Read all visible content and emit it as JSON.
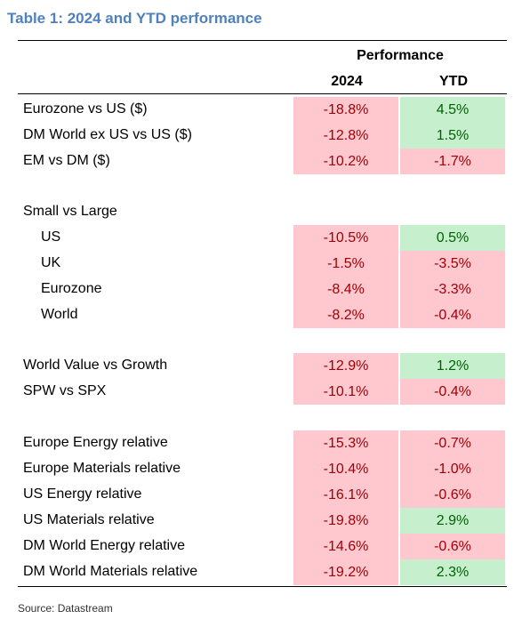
{
  "title": "Table 1: 2024 and YTD performance",
  "header": {
    "group": "Performance",
    "col1": "2024",
    "col2": "YTD"
  },
  "rows": [
    {
      "label": "Eurozone vs US ($)",
      "v2024": "-18.8%",
      "ytd": "4.5%"
    },
    {
      "label": "DM World ex US vs US ($)",
      "v2024": "-12.8%",
      "ytd": "1.5%"
    },
    {
      "label": "EM vs DM ($)",
      "v2024": "-10.2%",
      "ytd": "-1.7%"
    },
    {
      "label": "Small vs Large"
    },
    {
      "label": "US",
      "v2024": "-10.5%",
      "ytd": "0.5%"
    },
    {
      "label": "UK",
      "v2024": "-1.5%",
      "ytd": "-3.5%"
    },
    {
      "label": "Eurozone",
      "v2024": "-8.4%",
      "ytd": "-3.3%"
    },
    {
      "label": "World",
      "v2024": "-8.2%",
      "ytd": "-0.4%"
    },
    {
      "label": "World Value vs Growth",
      "v2024": "-12.9%",
      "ytd": "1.2%"
    },
    {
      "label": "SPW vs SPX",
      "v2024": "-10.1%",
      "ytd": "-0.4%"
    },
    {
      "label": "Europe Energy relative",
      "v2024": "-15.3%",
      "ytd": "-0.7%"
    },
    {
      "label": "Europe Materials relative",
      "v2024": "-10.4%",
      "ytd": "-1.0%"
    },
    {
      "label": "US Energy relative",
      "v2024": "-16.1%",
      "ytd": "-0.6%"
    },
    {
      "label": "US Materials relative",
      "v2024": "-19.8%",
      "ytd": "2.9%"
    },
    {
      "label": "DM World Energy relative",
      "v2024": "-14.6%",
      "ytd": "-0.6%"
    },
    {
      "label": "DM World Materials relative",
      "v2024": "-19.2%",
      "ytd": "2.3%"
    }
  ],
  "source": "Source: Datastream",
  "colors": {
    "title": "#4f81bd",
    "negative_fill": "#ffc7ce",
    "negative_text": "#9c0006",
    "positive_fill": "#c6efce",
    "positive_text": "#006100"
  }
}
